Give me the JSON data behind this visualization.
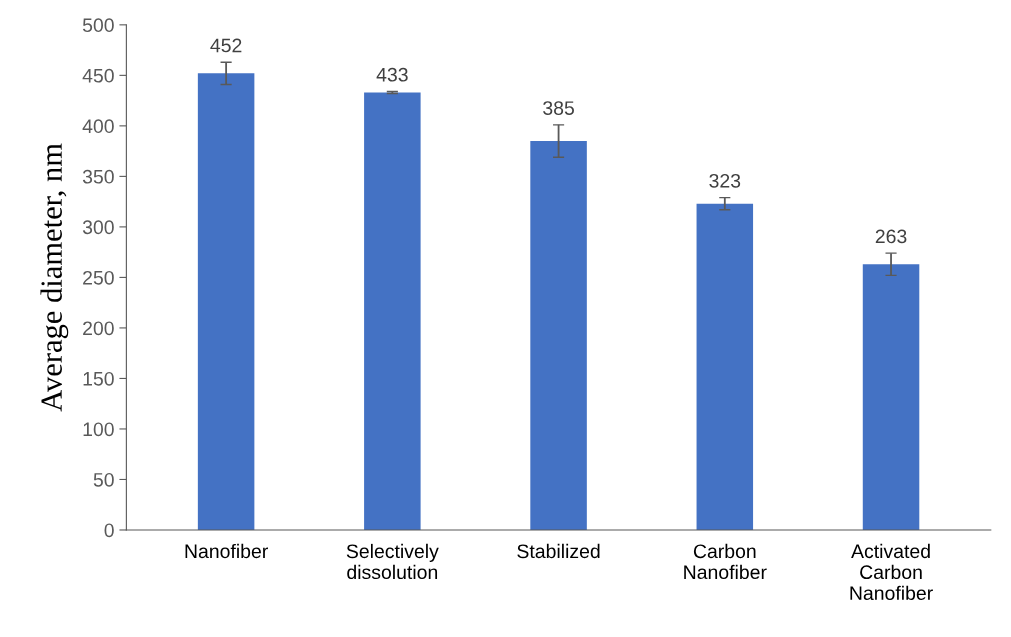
{
  "chart_data": {
    "type": "bar",
    "ylabel": "Average diameter, nm",
    "categories": [
      "Nanofiber",
      "Selectively\ndissolution",
      "Stabilized",
      "Carbon\nNanofiber",
      "Activated\nCarbon\nNanofiber"
    ],
    "values": [
      452,
      433,
      385,
      323,
      263
    ],
    "errors": [
      11,
      1,
      16,
      6,
      11
    ],
    "color": "#4472c4",
    "data_labels": true,
    "ylim": [
      0,
      500
    ],
    "yticks": [
      0,
      50,
      100,
      150,
      200,
      250,
      300,
      350,
      400,
      450,
      500
    ],
    "grid": false
  }
}
